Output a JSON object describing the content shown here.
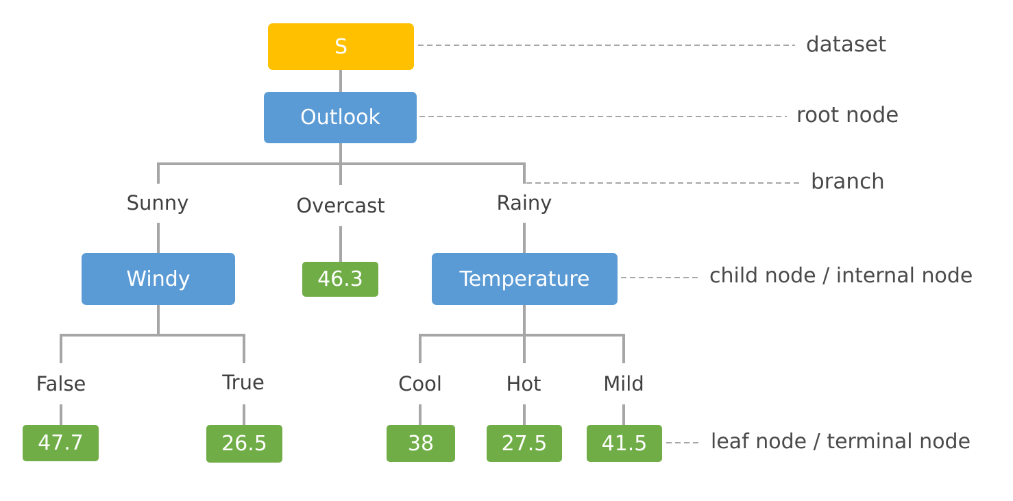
{
  "colors": {
    "dataset": "#ffc000",
    "internal": "#5b9bd5",
    "leaf": "#70ad47",
    "connector": "#a6a6a6",
    "annotation_line": "#a6a6a6",
    "text": "#404040"
  },
  "nodes": {
    "dataset": "S",
    "root": "Outlook",
    "windy": "Windy",
    "overcast_leaf": "46.3",
    "temperature": "Temperature",
    "false_leaf": "47.7",
    "true_leaf": "26.5",
    "cool_leaf": "38",
    "hot_leaf": "27.5",
    "mild_leaf": "41.5"
  },
  "branches": {
    "sunny": "Sunny",
    "overcast": "Overcast",
    "rainy": "Rainy",
    "false": "False",
    "true": "True",
    "cool": "Cool",
    "hot": "Hot",
    "mild": "Mild"
  },
  "annotations": {
    "dataset": "dataset",
    "root": "root node",
    "branch": "branch",
    "child": "child node / internal node",
    "leaf": "leaf node / terminal node"
  }
}
